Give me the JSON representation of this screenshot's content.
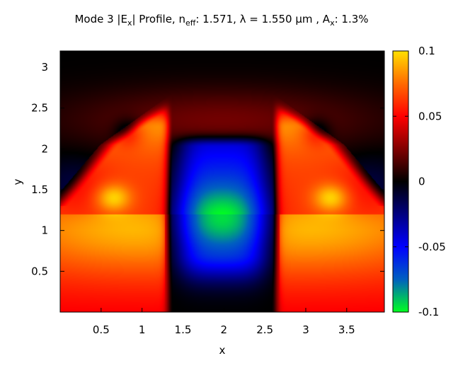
{
  "chart_data": {
    "type": "heatmap",
    "title": {
      "prefix": "Mode 3 |E",
      "prefix_sub": "x",
      "mid1": "| Profile, n",
      "mid1_sub": "eff",
      "mid2": ": 1.571, λ = 1.550 µm , A",
      "mid2_sub": "x",
      "suffix": ": 1.3%"
    },
    "xlabel": "x",
    "ylabel": "y",
    "xlim": [
      0,
      3.96
    ],
    "ylim": [
      0,
      3.2
    ],
    "x_ticks": [
      {
        "value": 0.5,
        "label": "0.5"
      },
      {
        "value": 1.0,
        "label": "1"
      },
      {
        "value": 1.5,
        "label": "1.5"
      },
      {
        "value": 2.0,
        "label": "2"
      },
      {
        "value": 2.5,
        "label": "2.5"
      },
      {
        "value": 3.0,
        "label": "3"
      },
      {
        "value": 3.5,
        "label": "3.5"
      }
    ],
    "y_ticks": [
      {
        "value": 0.5,
        "label": "0.5"
      },
      {
        "value": 1.0,
        "label": "1"
      },
      {
        "value": 1.5,
        "label": "1.5"
      },
      {
        "value": 2.0,
        "label": "2"
      },
      {
        "value": 2.5,
        "label": "2.5"
      },
      {
        "value": 3.0,
        "label": "3"
      }
    ],
    "colorbar": {
      "range": [
        -0.1,
        0.1
      ],
      "ticks": [
        {
          "value": 0.1,
          "label": "0.1"
        },
        {
          "value": 0.05,
          "label": "0.05"
        },
        {
          "value": 0.0,
          "label": "0"
        },
        {
          "value": -0.05,
          "label": "-0.05"
        },
        {
          "value": -0.1,
          "label": "-0.1"
        }
      ],
      "colormap": [
        {
          "value": -0.1,
          "color": "#00ff20"
        },
        {
          "value": -0.075,
          "color": "#0060c0"
        },
        {
          "value": -0.05,
          "color": "#0000ff"
        },
        {
          "value": -0.025,
          "color": "#000080"
        },
        {
          "value": 0.0,
          "color": "#000000"
        },
        {
          "value": 0.025,
          "color": "#800000"
        },
        {
          "value": 0.05,
          "color": "#ff0000"
        },
        {
          "value": 0.075,
          "color": "#ff6a00"
        },
        {
          "value": 0.1,
          "color": "#ffe000"
        }
      ]
    },
    "features": {
      "positive_lobes": [
        {
          "x": 0.65,
          "y": 1.4,
          "value": 0.086
        },
        {
          "x": 3.25,
          "y": 1.4,
          "value": 0.086
        }
      ],
      "negative_core": {
        "x": 1.98,
        "y": 1.15,
        "value": -0.093
      }
    }
  }
}
